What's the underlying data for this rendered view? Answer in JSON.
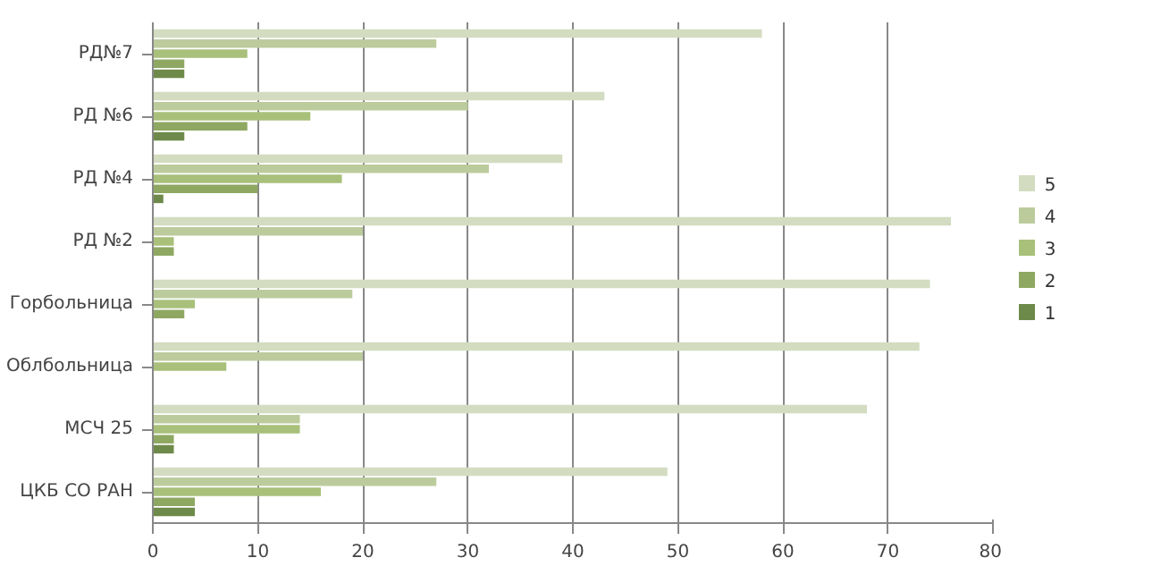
{
  "chart_data": {
    "type": "bar",
    "orientation": "horizontal",
    "categories": [
      "РД№7",
      "РД №6",
      "РД №4",
      "РД №2",
      "Горбольница",
      "Облбольница",
      "МСЧ 25",
      "ЦКБ СО РАН"
    ],
    "series": [
      {
        "name": "5",
        "color": "#d3dcc0",
        "values": [
          58,
          43,
          39,
          76,
          74,
          73,
          68,
          49
        ]
      },
      {
        "name": "4",
        "color": "#bccb9c",
        "values": [
          27,
          30,
          32,
          20,
          19,
          20,
          14,
          27
        ]
      },
      {
        "name": "3",
        "color": "#a8c07a",
        "values": [
          9,
          15,
          18,
          2,
          4,
          7,
          14,
          16
        ]
      },
      {
        "name": "2",
        "color": "#8ea862",
        "values": [
          3,
          9,
          10,
          2,
          3,
          null,
          2,
          4
        ]
      },
      {
        "name": "1",
        "color": "#6e8a4a",
        "values": [
          3,
          3,
          1,
          null,
          null,
          null,
          2,
          4
        ]
      }
    ],
    "xlim": [
      0,
      80
    ],
    "xticks": [
      0,
      10,
      20,
      30,
      40,
      50,
      60,
      70,
      80
    ],
    "grid": "x",
    "legend": "right"
  }
}
